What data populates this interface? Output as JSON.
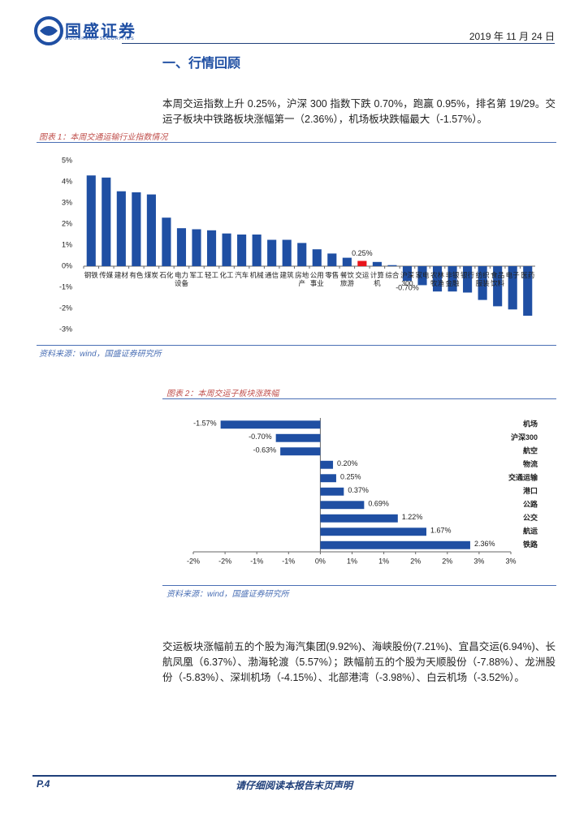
{
  "header": {
    "logo": "国盛证券",
    "logo_en": "GUOSHENG SECURITIES",
    "date": "2019 年 11 月 24 日"
  },
  "section_title": "一、行情回顾",
  "paragraphs": [
    "本周交运指数上升 0.25%，沪深 300 指数下跌 0.70%，跑赢 0.95%，排名第 19/29。交运子板块中铁路板块涨幅第一（2.36%），机场板块跌幅最大（-1.57%）。",
    "交运板块涨幅前五的个股为海汽集团(9.92%)、海峡股份(7.21%)、宜昌交运(6.94%)、长航凤凰（6.37%）、渤海轮渡（5.57%）；跌幅前五的个股为天顺股份（-7.88%）、龙洲股份（-5.83%）、深圳机场（-4.15%）、北部港湾（-3.98%）、白云机场（-3.52%）。"
  ],
  "figures": [
    {
      "caption": "图表 1：本周交通运输行业指数情况",
      "source": "资料来源：wind，国盛证券研究所"
    },
    {
      "caption": "图表 2：本周交运子板块涨跌幅",
      "source": "资料来源：wind，国盛证券研究所"
    }
  ],
  "chart_data": [
    {
      "type": "bar",
      "categories": [
        "钢铁",
        "传媒",
        "建材",
        "有色",
        "煤炭",
        "石化",
        "电力设备",
        "军工",
        "轻工",
        "化工",
        "汽车",
        "机械",
        "通信",
        "建筑",
        "房地产",
        "公用事业",
        "零售",
        "餐饮旅游",
        "交运",
        "计算机",
        "综合",
        "沪深300",
        "家电",
        "农林牧渔",
        "非银金融",
        "银行",
        "纺织服装",
        "食品饮料",
        "电子",
        "医药"
      ],
      "values": [
        4.3,
        4.2,
        3.55,
        3.5,
        3.4,
        2.3,
        1.8,
        1.75,
        1.7,
        1.55,
        1.5,
        1.5,
        1.25,
        1.25,
        1.1,
        0.8,
        0.6,
        0.4,
        0.25,
        0.2,
        0.05,
        -0.7,
        -0.9,
        -1.2,
        -1.2,
        -1.25,
        -1.6,
        -1.9,
        -2.05,
        -2.35
      ],
      "value_labels": [
        null,
        null,
        null,
        null,
        null,
        null,
        null,
        null,
        null,
        null,
        null,
        null,
        null,
        null,
        null,
        null,
        null,
        null,
        "0.25%",
        null,
        null,
        "-0.70%",
        null,
        null,
        null,
        null,
        null,
        null,
        null,
        null
      ],
      "colors": [
        "#1f4fa3",
        "#1f4fa3",
        "#1f4fa3",
        "#1f4fa3",
        "#1f4fa3",
        "#1f4fa3",
        "#1f4fa3",
        "#1f4fa3",
        "#1f4fa3",
        "#1f4fa3",
        "#1f4fa3",
        "#1f4fa3",
        "#1f4fa3",
        "#1f4fa3",
        "#1f4fa3",
        "#1f4fa3",
        "#1f4fa3",
        "#1f4fa3",
        "#e8141b",
        "#1f4fa3",
        "#1f4fa3",
        "#1f4fa3",
        "#1f4fa3",
        "#1f4fa3",
        "#1f4fa3",
        "#1f4fa3",
        "#1f4fa3",
        "#1f4fa3",
        "#1f4fa3",
        "#1f4fa3"
      ],
      "ylim": [
        -3,
        5
      ],
      "yticks": [
        {
          "value": -3,
          "label": "-3%"
        },
        {
          "value": -2,
          "label": "-2%"
        },
        {
          "value": -1,
          "label": "-1%"
        },
        {
          "value": 0,
          "label": "0%"
        },
        {
          "value": 1,
          "label": "1%"
        },
        {
          "value": 2,
          "label": "2%"
        },
        {
          "value": 3,
          "label": "3%"
        },
        {
          "value": 4,
          "label": "4%"
        },
        {
          "value": 5,
          "label": "5%"
        }
      ],
      "grid": false
    },
    {
      "type": "barh",
      "categories": [
        "机场",
        "沪深300",
        "航空",
        "物流",
        "交通运输",
        "港口",
        "公路",
        "公交",
        "航运",
        "铁路"
      ],
      "values": [
        -1.57,
        -0.7,
        -0.63,
        0.2,
        0.25,
        0.37,
        0.69,
        1.22,
        1.67,
        2.36
      ],
      "value_labels": [
        "-1.57%",
        "-0.70%",
        "-0.63%",
        "0.20%",
        "0.25%",
        "0.37%",
        "0.69%",
        "1.22%",
        "1.67%",
        "2.36%"
      ],
      "color": "#1f4fa3",
      "xlim": [
        -2,
        3
      ],
      "xticks": [
        {
          "value": -2,
          "label": "-2%"
        },
        {
          "value": -1.5,
          "label": "-2%"
        },
        {
          "value": -1,
          "label": "-1%"
        },
        {
          "value": -0.5,
          "label": "-1%"
        },
        {
          "value": 0,
          "label": "0%"
        },
        {
          "value": 0.5,
          "label": "1%"
        },
        {
          "value": 1,
          "label": "1%"
        },
        {
          "value": 1.5,
          "label": "2%"
        },
        {
          "value": 2,
          "label": "2%"
        },
        {
          "value": 2.5,
          "label": "3%"
        },
        {
          "value": 3,
          "label": "3%"
        }
      ],
      "grid": false
    }
  ],
  "footer": {
    "page": "P.4",
    "statement": "请仔细阅读本报告末页声明"
  }
}
